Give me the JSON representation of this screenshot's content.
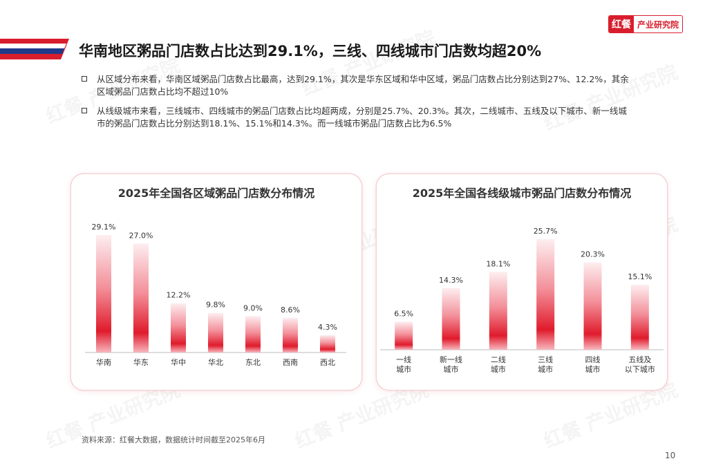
{
  "brand": {
    "mark": "红餐",
    "text": "产业研究院"
  },
  "page": {
    "title": "华南地区粥品门店数占比达到29.1%，三线、四线城市门店数均超20%",
    "bullets": [
      "从区域分布来看，华南区域粥品门店数占比最高，达到29.1%，其次是华东区域和华中区域，粥品门店数占比分别达到27%、12.2%，其余区域粥品门店数占比均不超过10%",
      "从线级城市来看，三线城市、四线城市的粥品门店数占比均超两成，分别是25.7%、20.3%。其次，二线城市、五线及以下城市、新一线城市的粥品门店数占比分别达到18.1%、15.1%和14.3%。而一线城市粥品门店数占比为6.5%"
    ],
    "source": "资料来源：红餐大数据，数据统计时间截至2025年6月",
    "page_number": "10",
    "watermark": "红餐 产业研究院"
  },
  "colors": {
    "accent": "#d81e2c",
    "title_bar_blue": "#1f3a8a",
    "bar_light": "#fbe3e6"
  },
  "chart_data": [
    {
      "type": "bar",
      "title": "2025年全国各区域粥品门店数分布情况",
      "categories": [
        "华南",
        "华东",
        "华中",
        "华北",
        "东北",
        "西南",
        "西北"
      ],
      "values": [
        29.1,
        27.0,
        12.2,
        9.8,
        9.0,
        8.6,
        4.3
      ],
      "labels": [
        "29.1%",
        "27.0%",
        "12.2%",
        "9.8%",
        "9.0%",
        "8.6%",
        "4.3%"
      ],
      "unit": "%",
      "grid": false,
      "legend": "none"
    },
    {
      "type": "bar",
      "title": "2025年全国各线级城市粥品门店数分布情况",
      "categories": [
        [
          "一线",
          "城市"
        ],
        [
          "新一线",
          "城市"
        ],
        [
          "二线",
          "城市"
        ],
        [
          "三线",
          "城市"
        ],
        [
          "四线",
          "城市"
        ],
        [
          "五线及",
          "以下城市"
        ]
      ],
      "values": [
        6.5,
        14.3,
        18.1,
        25.7,
        20.3,
        15.1
      ],
      "labels": [
        "6.5%",
        "14.3%",
        "18.1%",
        "25.7%",
        "20.3%",
        "15.1%"
      ],
      "unit": "%",
      "grid": false,
      "legend": "none"
    }
  ]
}
